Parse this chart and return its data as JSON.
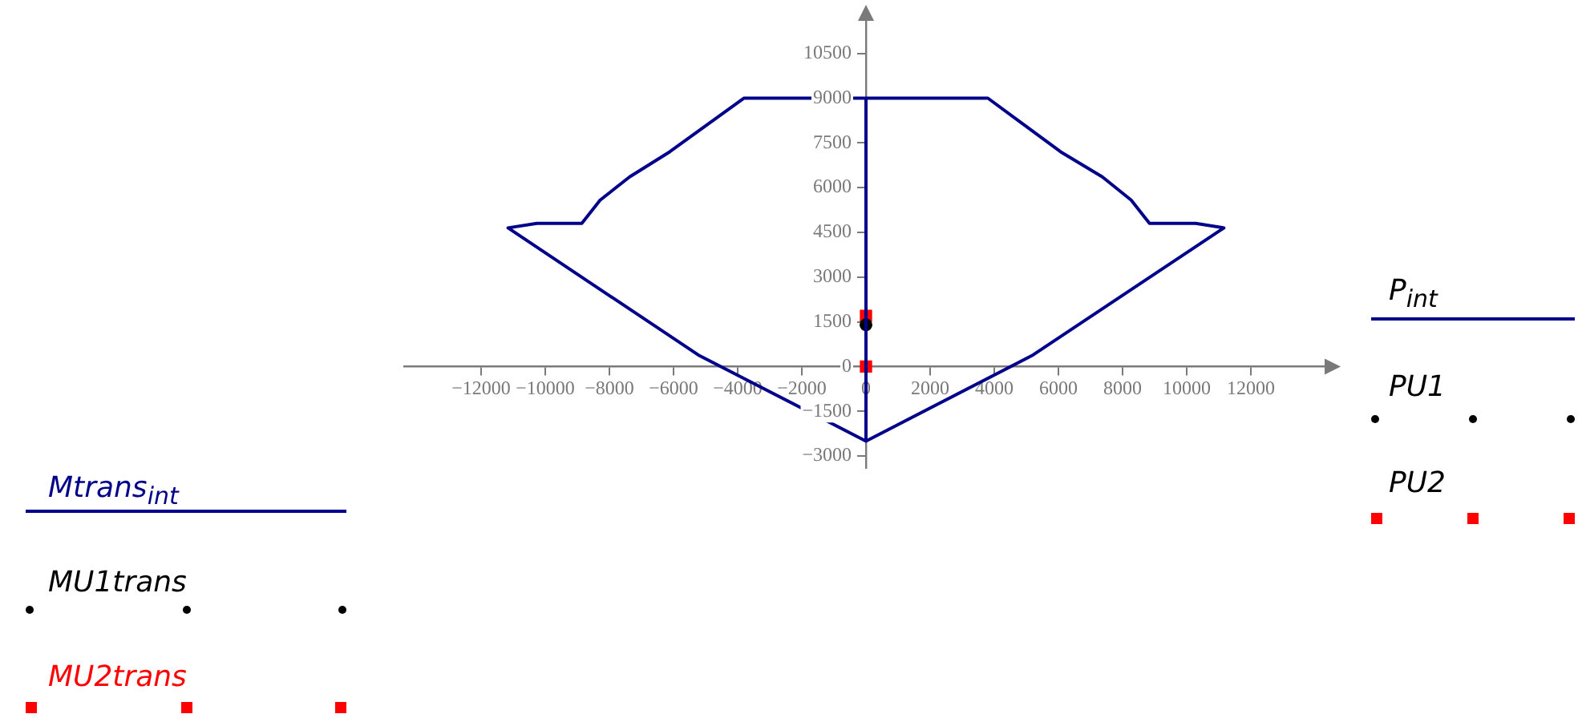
{
  "chart_data": {
    "type": "line",
    "legend": "bottom left",
    "grid": false,
    "xlim": [
      -14400,
      14400
    ],
    "xticks": [
      -12000,
      -10000,
      -8000,
      -6000,
      -4000,
      -2000,
      0,
      2000,
      4000,
      6000,
      8000,
      10000,
      12000
    ],
    "ylim": [
      -3400,
      11700
    ],
    "yticks": [
      -3000,
      -1500,
      0,
      1500,
      3000,
      4500,
      6000,
      7500,
      9000,
      10500
    ],
    "annotations": [
      "P$_{int}$",
      "PU1",
      "PU2"
    ],
    "series": [
      {
        "name": "Mtrans$_{int}$",
        "type": "line",
        "marker": "none",
        "color": "#00008b",
        "x": [
          0,
          0,
          3800,
          6070,
          7370,
          8270,
          8840,
          10280,
          11160,
          5210,
          0,
          -5230,
          -11160,
          -10260,
          -8860,
          -8290,
          -7370,
          -6120,
          -3800,
          0
        ],
        "values": [
          -2500,
          9000,
          9000,
          7200,
          6360,
          5580,
          4800,
          4800,
          4650,
          390,
          -2500,
          390,
          4650,
          4800,
          4800,
          5580,
          6360,
          7200,
          9000,
          9000
        ]
      },
      {
        "name": "MU1trans",
        "type": "scatter",
        "marker": "circle",
        "color": "#000000",
        "x": [
          0
        ],
        "values": [
          1400
        ]
      },
      {
        "name": "MU2trans",
        "type": "scatter",
        "marker": "square",
        "color": "#ff0000",
        "x": [
          0,
          0
        ],
        "values": [
          1700,
          0
        ]
      }
    ]
  }
}
